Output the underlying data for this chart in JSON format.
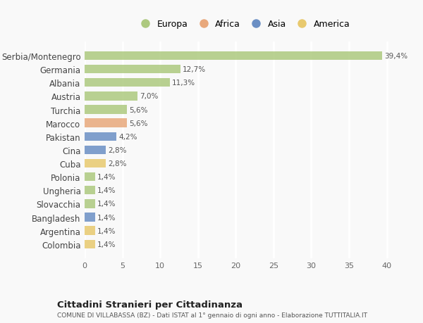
{
  "countries": [
    "Serbia/Montenegro",
    "Germania",
    "Albania",
    "Austria",
    "Turchia",
    "Marocco",
    "Pakistan",
    "Cina",
    "Cuba",
    "Polonia",
    "Ungheria",
    "Slovacchia",
    "Bangladesh",
    "Argentina",
    "Colombia"
  ],
  "values": [
    39.4,
    12.7,
    11.3,
    7.0,
    5.6,
    5.6,
    4.2,
    2.8,
    2.8,
    1.4,
    1.4,
    1.4,
    1.4,
    1.4,
    1.4
  ],
  "labels": [
    "39,4%",
    "12,7%",
    "11,3%",
    "7,0%",
    "5,6%",
    "5,6%",
    "4,2%",
    "2,8%",
    "2,8%",
    "1,4%",
    "1,4%",
    "1,4%",
    "1,4%",
    "1,4%",
    "1,4%"
  ],
  "colors": [
    "#adc97f",
    "#adc97f",
    "#adc97f",
    "#adc97f",
    "#adc97f",
    "#e8a87c",
    "#6b8fc4",
    "#6b8fc4",
    "#e8c96e",
    "#adc97f",
    "#adc97f",
    "#adc97f",
    "#6b8fc4",
    "#e8c96e",
    "#e8c96e"
  ],
  "continent_colors": {
    "Europa": "#adc97f",
    "Africa": "#e8a87c",
    "Asia": "#6b8fc4",
    "America": "#e8c96e"
  },
  "title": "Cittadini Stranieri per Cittadinanza",
  "subtitle": "COMUNE DI VILLABASSA (BZ) - Dati ISTAT al 1° gennaio di ogni anno - Elaborazione TUTTITALIA.IT",
  "xlim": [
    0,
    42
  ],
  "xticks": [
    0,
    5,
    10,
    15,
    20,
    25,
    30,
    35,
    40
  ],
  "background_color": "#f9f9f9",
  "grid_color": "#ffffff",
  "bar_height": 0.65
}
